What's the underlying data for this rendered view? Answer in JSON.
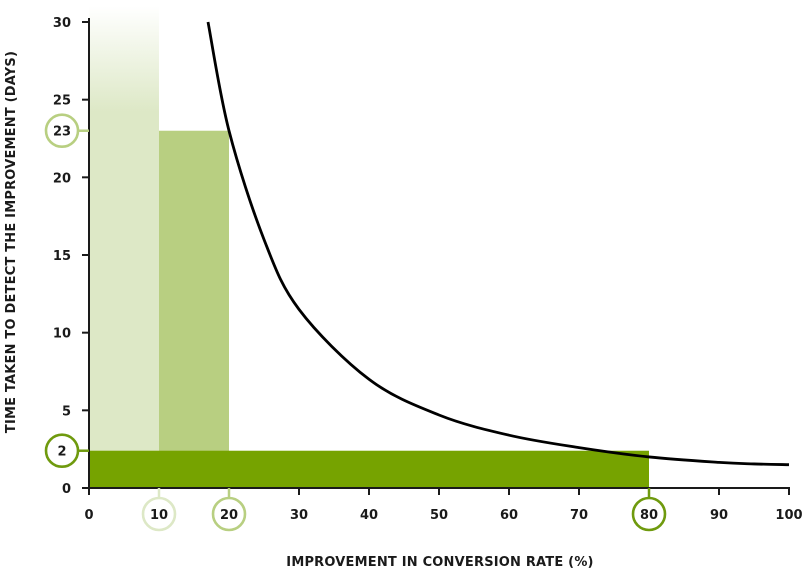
{
  "chart_data": {
    "type": "line",
    "xlabel": "IMPROVEMENT IN CONVERSION RATE (%)",
    "ylabel": "TIME TAKEN TO DETECT THE IMPROVEMENT (DAYS)",
    "xlim": [
      0,
      100
    ],
    "ylim": [
      0,
      30
    ],
    "x_ticks": [
      "0",
      "10",
      "20",
      "30",
      "40",
      "50",
      "60",
      "70",
      "80",
      "90",
      "100"
    ],
    "y_ticks": [
      "0",
      "5",
      "10",
      "15",
      "20",
      "25",
      "30"
    ],
    "grid": false,
    "curve": {
      "x": [
        17,
        20,
        25,
        30,
        40,
        50,
        60,
        70,
        80,
        90,
        95,
        100
      ],
      "y": [
        30,
        23,
        16,
        11.5,
        7,
        4.7,
        3.4,
        2.6,
        2,
        1.65,
        1.55,
        1.5
      ]
    },
    "bars": [
      {
        "x_end": 10,
        "y": 30,
        "color": "#dde8c6",
        "fades_to_top": true
      },
      {
        "x_start": 10,
        "x_end": 20,
        "y": 23,
        "color": "#b8cf81"
      },
      {
        "x_end": 80,
        "y": 2.4,
        "color": "#76a300"
      }
    ],
    "highlighted_x": [
      {
        "label": "10",
        "color": "#dde8c6"
      },
      {
        "label": "20",
        "color": "#b8cf81"
      },
      {
        "label": "80",
        "color": "#6f9a0e"
      }
    ],
    "highlighted_y": [
      {
        "label": "23",
        "color": "#b8cf81"
      },
      {
        "label": "2",
        "color": "#6f9a0e"
      }
    ],
    "colors": {
      "axis": "#1a1a1a",
      "curve": "#000000"
    }
  }
}
